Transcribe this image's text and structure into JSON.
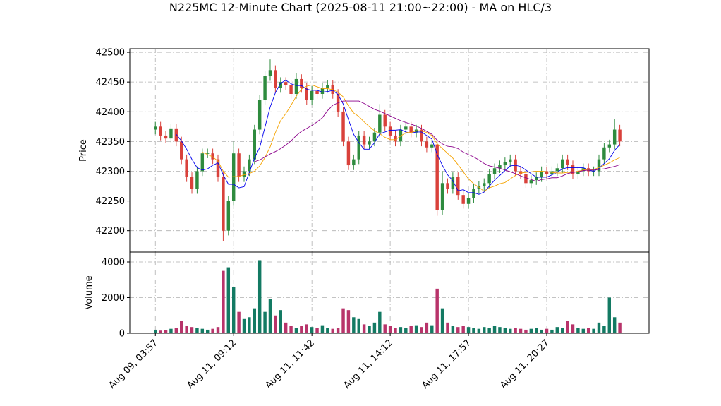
{
  "title": "N225MC 12-Minute Chart (2025-08-11 21:00~22:00) - MA on HLC/3",
  "chart_data": [
    {
      "type": "candlestick",
      "ylabel": "Price",
      "grid": true,
      "up_color": "#2e8b3e",
      "down_color": "#d9413b",
      "xlim": [
        -4.9,
        94.6
      ],
      "ylim": [
        42164,
        42506
      ],
      "yticks": [
        42200,
        42250,
        42300,
        42350,
        42400,
        42450,
        42500
      ],
      "open": [
        42370,
        42375,
        42360,
        42355,
        42372,
        42350,
        42320,
        42290,
        42270,
        42300,
        42330,
        42330,
        42320,
        42290,
        42200,
        42250,
        42330,
        42290,
        42300,
        42320,
        42370,
        42420,
        42460,
        42470,
        42440,
        42450,
        42445,
        42430,
        42455,
        42440,
        42420,
        42435,
        42430,
        42440,
        42445,
        42430,
        42400,
        42350,
        42310,
        42320,
        42360,
        42345,
        42350,
        42365,
        42395,
        42375,
        42360,
        42350,
        42370,
        42375,
        42365,
        42370,
        42350,
        42340,
        42345,
        42235,
        42280,
        42270,
        42290,
        42260,
        42245,
        42255,
        42270,
        42275,
        42280,
        42295,
        42305,
        42310,
        42315,
        42320,
        42300,
        42295,
        42280,
        42285,
        42290,
        42300,
        42295,
        42300,
        42305,
        42320,
        42310,
        42295,
        42300,
        42305,
        42300,
        42300,
        42320,
        42340,
        42345,
        42370
      ],
      "high": [
        42383,
        42383,
        42368,
        42380,
        42380,
        42358,
        42328,
        42298,
        42308,
        42338,
        42338,
        42338,
        42328,
        42298,
        42258,
        42350,
        42338,
        42308,
        42328,
        42378,
        42428,
        42468,
        42488,
        42478,
        42458,
        42458,
        42453,
        42465,
        42463,
        42448,
        42443,
        42443,
        42448,
        42453,
        42453,
        42438,
        42408,
        42358,
        42328,
        42368,
        42368,
        42358,
        42373,
        42413,
        42403,
        42383,
        42368,
        42378,
        42383,
        42383,
        42378,
        42378,
        42358,
        42353,
        42353,
        42300,
        42288,
        42298,
        42298,
        42268,
        42263,
        42278,
        42283,
        42288,
        42303,
        42313,
        42318,
        42323,
        42328,
        42328,
        42308,
        42303,
        42293,
        42298,
        42308,
        42308,
        42308,
        42313,
        42328,
        42328,
        42318,
        42308,
        42313,
        42313,
        42308,
        42328,
        42348,
        42353,
        42388,
        42378
      ],
      "low": [
        42362,
        42352,
        42347,
        42347,
        42342,
        42312,
        42282,
        42262,
        42262,
        42292,
        42322,
        42312,
        42282,
        42182,
        42192,
        42242,
        42282,
        42282,
        42292,
        42312,
        42362,
        42412,
        42452,
        42432,
        42432,
        42437,
        42422,
        42422,
        42432,
        42412,
        42412,
        42422,
        42422,
        42432,
        42422,
        42392,
        42342,
        42302,
        42302,
        42312,
        42337,
        42337,
        42342,
        42357,
        42367,
        42352,
        42342,
        42342,
        42362,
        42357,
        42357,
        42342,
        42332,
        42332,
        42225,
        42227,
        42262,
        42262,
        42252,
        42237,
        42237,
        42247,
        42262,
        42267,
        42272,
        42287,
        42297,
        42302,
        42307,
        42292,
        42287,
        42272,
        42272,
        42277,
        42282,
        42287,
        42287,
        42292,
        42297,
        42302,
        42287,
        42287,
        42292,
        42292,
        42292,
        42292,
        42312,
        42332,
        42337,
        42342
      ],
      "close": [
        42375,
        42360,
        42355,
        42372,
        42350,
        42320,
        42290,
        42270,
        42300,
        42330,
        42330,
        42320,
        42290,
        42200,
        42250,
        42330,
        42290,
        42300,
        42320,
        42370,
        42420,
        42460,
        42470,
        42440,
        42450,
        42445,
        42430,
        42455,
        42440,
        42420,
        42435,
        42430,
        42440,
        42445,
        42430,
        42400,
        42350,
        42310,
        42320,
        42360,
        42345,
        42350,
        42365,
        42395,
        42375,
        42360,
        42350,
        42370,
        42375,
        42365,
        42370,
        42350,
        42340,
        42345,
        42235,
        42280,
        42270,
        42290,
        42260,
        42245,
        42255,
        42270,
        42275,
        42280,
        42295,
        42305,
        42310,
        42315,
        42320,
        42300,
        42295,
        42280,
        42285,
        42290,
        42300,
        42295,
        42300,
        42305,
        42320,
        42310,
        42295,
        42300,
        42305,
        42300,
        42300,
        42320,
        42340,
        42345,
        42370,
        42350
      ],
      "series": [
        {
          "color": "#0000ee",
          "values": [
            null,
            null,
            null,
            null,
            42362,
            42351,
            42337,
            42320,
            42306,
            42302,
            42304,
            42310,
            42314,
            42294,
            42278,
            42278,
            42272,
            42274,
            42298,
            42322,
            42340,
            42374,
            42408,
            42432,
            42448,
            42453,
            42447,
            42444,
            42444,
            42438,
            42436,
            42436,
            42433,
            42434,
            42436,
            42429,
            42413,
            42387,
            42362,
            42348,
            42337,
            42337,
            42348,
            42363,
            42366,
            42369,
            42369,
            42370,
            42366,
            42364,
            42366,
            42366,
            42360,
            42354,
            42328,
            42310,
            42294,
            42284,
            42267,
            42269,
            42264,
            42264,
            42261,
            42265,
            42275,
            42285,
            42293,
            42301,
            42309,
            42310,
            42308,
            42302,
            42296,
            42290,
            42290,
            42290,
            42294,
            42298,
            42304,
            42306,
            42306,
            42306,
            42306,
            42302,
            42300,
            42305,
            42313,
            42321,
            42335,
            42345
          ]
        },
        {
          "color": "#f5a300",
          "values": [
            null,
            null,
            null,
            null,
            null,
            null,
            null,
            null,
            null,
            42332,
            42328,
            42324,
            42317,
            42300,
            42290,
            42291,
            42291,
            42294,
            42296,
            42300,
            42309,
            42323,
            42341,
            42365,
            42385,
            42397,
            42411,
            42426,
            42438,
            42443,
            42445,
            42442,
            42439,
            42439,
            42437,
            42433,
            42425,
            42410,
            42398,
            42392,
            42383,
            42375,
            42368,
            42363,
            42357,
            42353,
            42353,
            42359,
            42365,
            42365,
            42368,
            42368,
            42365,
            42360,
            42346,
            42338,
            42330,
            42322,
            42311,
            42299,
            42287,
            42279,
            42273,
            42266,
            42272,
            42275,
            42279,
            42281,
            42287,
            42293,
            42297,
            42298,
            42299,
            42300,
            42300,
            42299,
            42298,
            42297,
            42297,
            42298,
            42298,
            42300,
            42302,
            42303,
            42303,
            42306,
            42310,
            42314,
            42319,
            42323
          ]
        },
        {
          "color": "#8b008b",
          "values": [
            null,
            null,
            null,
            null,
            null,
            null,
            null,
            null,
            null,
            null,
            null,
            null,
            null,
            null,
            null,
            null,
            null,
            null,
            null,
            42316,
            42319,
            42324,
            42329,
            42333,
            42338,
            42344,
            42351,
            42360,
            42367,
            42372,
            42377,
            42383,
            42390,
            42402,
            42411,
            42415,
            42418,
            42418,
            42418,
            42418,
            42414,
            42409,
            42404,
            42401,
            42397,
            42393,
            42389,
            42385,
            42382,
            42379,
            42376,
            42372,
            42367,
            42362,
            42352,
            42346,
            42342,
            42341,
            42338,
            42332,
            42328,
            42324,
            42319,
            42313,
            42309,
            42307,
            42305,
            42302,
            42299,
            42296,
            42292,
            42289,
            42286,
            42283,
            42286,
            42287,
            42289,
            42289,
            42292,
            42296,
            42298,
            42299,
            42301,
            42302,
            42302,
            42303,
            42304,
            42306,
            42308,
            42311
          ]
        }
      ]
    },
    {
      "type": "bar",
      "ylabel": "Volume",
      "grid": true,
      "up_color": "#137a63",
      "down_color": "#b8336a",
      "xlim": [
        -4.9,
        94.6
      ],
      "ylim": [
        0,
        4554
      ],
      "yticks": [
        0,
        2000,
        4000
      ],
      "xticks": [
        {
          "value": 0,
          "label": "Aug 09, 03:57"
        },
        {
          "value": 15,
          "label": "Aug 11, 09:12"
        },
        {
          "value": 30,
          "label": "Aug 11, 11:42"
        },
        {
          "value": 45,
          "label": "Aug 11, 14:12"
        },
        {
          "value": 60,
          "label": "Aug 11, 17:57"
        },
        {
          "value": 75,
          "label": "Aug 11, 20:27"
        }
      ],
      "values": [
        200,
        150,
        180,
        250,
        300,
        700,
        400,
        350,
        300,
        250,
        200,
        250,
        350,
        3500,
        3700,
        2600,
        1200,
        800,
        900,
        1400,
        4100,
        1200,
        1900,
        1000,
        1300,
        600,
        400,
        300,
        400,
        500,
        350,
        300,
        450,
        300,
        250,
        300,
        1400,
        1300,
        900,
        800,
        500,
        400,
        600,
        1200,
        500,
        400,
        300,
        350,
        300,
        400,
        450,
        350,
        600,
        450,
        2500,
        1400,
        600,
        400,
        350,
        400,
        350,
        300,
        250,
        350,
        300,
        400,
        350,
        300,
        250,
        300,
        250,
        200,
        250,
        300,
        200,
        250,
        200,
        350,
        300,
        700,
        500,
        300,
        250,
        300,
        250,
        600,
        400,
        2000,
        900,
        600
      ]
    }
  ]
}
